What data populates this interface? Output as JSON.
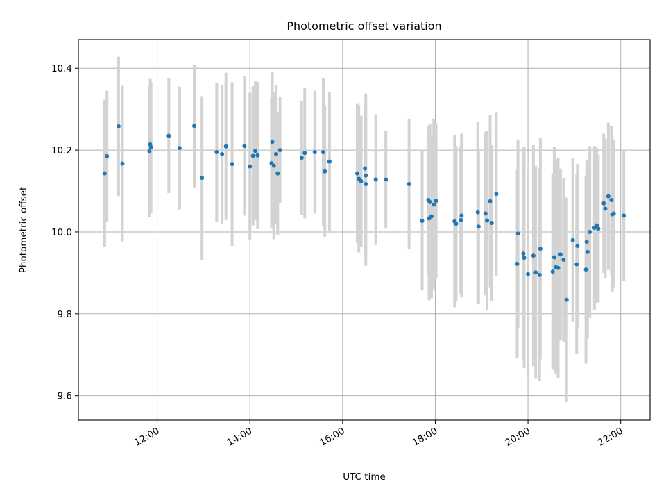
{
  "chart_data": {
    "type": "scatter",
    "title": "Photometric offset variation",
    "xlabel": "UTC time",
    "ylabel": "Photometric offset",
    "x_unit": "hours (UTC)",
    "xlim": [
      "10:18",
      "22:38"
    ],
    "ylim": [
      9.54,
      10.47
    ],
    "x_ticks": [
      "12:00",
      "14:00",
      "16:00",
      "18:00",
      "20:00",
      "22:00"
    ],
    "y_ticks": [
      "9.6",
      "9.8",
      "10.0",
      "10.2",
      "10.4"
    ],
    "grid": true,
    "point_color": "#1f77b4",
    "errorbar_color": "#d3d3d3",
    "series": [
      {
        "points": [
          {
            "x": "10:52",
            "y": 10.143,
            "err": 0.18
          },
          {
            "x": "10:55",
            "y": 10.185,
            "err": 0.16
          },
          {
            "x": "11:10",
            "y": 10.258,
            "err": 0.17
          },
          {
            "x": "11:15",
            "y": 10.167,
            "err": 0.19
          },
          {
            "x": "11:50",
            "y": 10.197,
            "err": 0.16
          },
          {
            "x": "11:51",
            "y": 10.214,
            "err": 0.16
          },
          {
            "x": "11:52",
            "y": 10.207,
            "err": 0.16
          },
          {
            "x": "12:15",
            "y": 10.235,
            "err": 0.14
          },
          {
            "x": "12:29",
            "y": 10.205,
            "err": 0.15
          },
          {
            "x": "12:48",
            "y": 10.259,
            "err": 0.15
          },
          {
            "x": "12:58",
            "y": 10.132,
            "err": 0.2
          },
          {
            "x": "13:17",
            "y": 10.195,
            "err": 0.17
          },
          {
            "x": "13:24",
            "y": 10.19,
            "err": 0.17
          },
          {
            "x": "13:29",
            "y": 10.209,
            "err": 0.18
          },
          {
            "x": "13:37",
            "y": 10.166,
            "err": 0.2
          },
          {
            "x": "13:53",
            "y": 10.21,
            "err": 0.17
          },
          {
            "x": "14:00",
            "y": 10.16,
            "err": 0.18
          },
          {
            "x": "14:04",
            "y": 10.186,
            "err": 0.17
          },
          {
            "x": "14:07",
            "y": 10.198,
            "err": 0.17
          },
          {
            "x": "14:10",
            "y": 10.187,
            "err": 0.18
          },
          {
            "x": "14:28",
            "y": 10.168,
            "err": 0.16
          },
          {
            "x": "14:29",
            "y": 10.22,
            "err": 0.17
          },
          {
            "x": "14:31",
            "y": 10.162,
            "err": 0.18
          },
          {
            "x": "14:34",
            "y": 10.19,
            "err": 0.17
          },
          {
            "x": "14:36",
            "y": 10.143,
            "err": 0.15
          },
          {
            "x": "14:39",
            "y": 10.2,
            "err": 0.13
          },
          {
            "x": "15:07",
            "y": 10.181,
            "err": 0.14
          },
          {
            "x": "15:11",
            "y": 10.193,
            "err": 0.16
          },
          {
            "x": "15:24",
            "y": 10.195,
            "err": 0.15
          },
          {
            "x": "15:35",
            "y": 10.195,
            "err": 0.18
          },
          {
            "x": "15:37",
            "y": 10.148,
            "err": 0.16
          },
          {
            "x": "15:43",
            "y": 10.172,
            "err": 0.17
          },
          {
            "x": "16:19",
            "y": 10.143,
            "err": 0.17
          },
          {
            "x": "16:21",
            "y": 10.13,
            "err": 0.18
          },
          {
            "x": "16:24",
            "y": 10.124,
            "err": 0.16
          },
          {
            "x": "16:29",
            "y": 10.155,
            "err": 0.15
          },
          {
            "x": "16:30",
            "y": 10.138,
            "err": 0.2
          },
          {
            "x": "16:30",
            "y": 10.117,
            "err": 0.2
          },
          {
            "x": "16:43",
            "y": 10.128,
            "err": 0.16
          },
          {
            "x": "16:56",
            "y": 10.128,
            "err": 0.12
          },
          {
            "x": "17:26",
            "y": 10.117,
            "err": 0.16
          },
          {
            "x": "17:43",
            "y": 10.027,
            "err": 0.17
          },
          {
            "x": "17:51",
            "y": 10.078,
            "err": 0.18
          },
          {
            "x": "17:52",
            "y": 10.033,
            "err": 0.2
          },
          {
            "x": "17:53",
            "y": 10.073,
            "err": 0.19
          },
          {
            "x": "17:55",
            "y": 10.038,
            "err": 0.2
          },
          {
            "x": "17:58",
            "y": 10.067,
            "err": 0.21
          },
          {
            "x": "18:01",
            "y": 10.076,
            "err": 0.19
          },
          {
            "x": "18:25",
            "y": 10.026,
            "err": 0.21
          },
          {
            "x": "18:27",
            "y": 10.02,
            "err": 0.19
          },
          {
            "x": "18:33",
            "y": 10.029,
            "err": 0.18
          },
          {
            "x": "18:34",
            "y": 10.04,
            "err": 0.2
          },
          {
            "x": "18:55",
            "y": 10.048,
            "err": 0.22
          },
          {
            "x": "18:56",
            "y": 10.013,
            "err": 0.19
          },
          {
            "x": "19:05",
            "y": 10.045,
            "err": 0.2
          },
          {
            "x": "19:07",
            "y": 10.028,
            "err": 0.22
          },
          {
            "x": "19:11",
            "y": 10.075,
            "err": 0.21
          },
          {
            "x": "19:13",
            "y": 10.022,
            "err": 0.19
          },
          {
            "x": "19:19",
            "y": 10.093,
            "err": 0.2
          },
          {
            "x": "19:46",
            "y": 9.922,
            "err": 0.23
          },
          {
            "x": "19:47",
            "y": 9.996,
            "err": 0.23
          },
          {
            "x": "19:54",
            "y": 9.947,
            "err": 0.26
          },
          {
            "x": "19:55",
            "y": 9.937,
            "err": 0.27
          },
          {
            "x": "20:00",
            "y": 9.897,
            "err": 0.25
          },
          {
            "x": "20:07",
            "y": 9.942,
            "err": 0.27
          },
          {
            "x": "20:10",
            "y": 9.901,
            "err": 0.26
          },
          {
            "x": "20:15",
            "y": 9.895,
            "err": 0.26
          },
          {
            "x": "20:16",
            "y": 9.959,
            "err": 0.27
          },
          {
            "x": "20:32",
            "y": 9.903,
            "err": 0.24
          },
          {
            "x": "20:34",
            "y": 9.938,
            "err": 0.27
          },
          {
            "x": "20:36",
            "y": 9.914,
            "err": 0.26
          },
          {
            "x": "20:39",
            "y": 9.912,
            "err": 0.27
          },
          {
            "x": "20:42",
            "y": 9.945,
            "err": 0.21
          },
          {
            "x": "20:46",
            "y": 9.932,
            "err": 0.2
          },
          {
            "x": "20:50",
            "y": 9.834,
            "err": 0.25
          },
          {
            "x": "20:58",
            "y": 9.98,
            "err": 0.2
          },
          {
            "x": "21:03",
            "y": 9.921,
            "err": 0.22
          },
          {
            "x": "21:04",
            "y": 9.966,
            "err": 0.2
          },
          {
            "x": "21:15",
            "y": 9.908,
            "err": 0.23
          },
          {
            "x": "21:16",
            "y": 9.976,
            "err": 0.2
          },
          {
            "x": "21:17",
            "y": 9.951,
            "err": 0.21
          },
          {
            "x": "21:20",
            "y": 10.0,
            "err": 0.21
          },
          {
            "x": "21:26",
            "y": 10.01,
            "err": 0.2
          },
          {
            "x": "21:29",
            "y": 10.016,
            "err": 0.19
          },
          {
            "x": "21:31",
            "y": 10.008,
            "err": 0.18
          },
          {
            "x": "21:38",
            "y": 10.07,
            "err": 0.17
          },
          {
            "x": "21:40",
            "y": 10.057,
            "err": 0.17
          },
          {
            "x": "21:44",
            "y": 10.087,
            "err": 0.18
          },
          {
            "x": "21:48",
            "y": 10.078,
            "err": 0.18
          },
          {
            "x": "21:49",
            "y": 10.043,
            "err": 0.19
          },
          {
            "x": "21:51",
            "y": 10.045,
            "err": 0.18
          },
          {
            "x": "22:04",
            "y": 10.04,
            "err": 0.16
          }
        ]
      }
    ]
  }
}
